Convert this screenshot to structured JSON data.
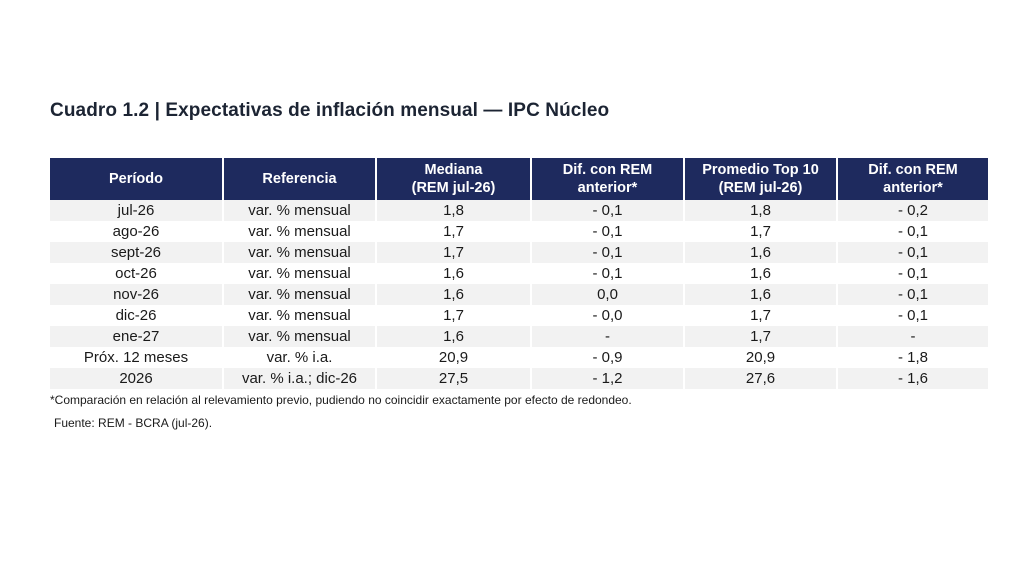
{
  "title": "Cuadro 1.2 | Expectativas de inflación mensual — IPC Núcleo",
  "table": {
    "headers": [
      [
        "Período"
      ],
      [
        "Referencia"
      ],
      [
        "Mediana",
        "(REM jul-26)"
      ],
      [
        "Dif. con REM",
        "anterior*"
      ],
      [
        "Promedio Top 10",
        "(REM jul-26)"
      ],
      [
        "Dif. con REM",
        "anterior*"
      ]
    ],
    "rows": [
      [
        "jul-26",
        "var. % mensual",
        "1,8",
        "- 0,1",
        "1,8",
        "- 0,2"
      ],
      [
        "ago-26",
        "var. % mensual",
        "1,7",
        "- 0,1",
        "1,7",
        "- 0,1"
      ],
      [
        "sept-26",
        "var. % mensual",
        "1,7",
        "- 0,1",
        "1,6",
        "- 0,1"
      ],
      [
        "oct-26",
        "var. % mensual",
        "1,6",
        "- 0,1",
        "1,6",
        "- 0,1"
      ],
      [
        "nov-26",
        "var. % mensual",
        "1,6",
        "0,0",
        "1,6",
        "- 0,1"
      ],
      [
        "dic-26",
        "var. % mensual",
        "1,7",
        "- 0,0",
        "1,7",
        "- 0,1"
      ],
      [
        "ene-27",
        "var. % mensual",
        "1,6",
        "-",
        "1,7",
        "-"
      ],
      [
        "Próx. 12 meses",
        "var. % i.a.",
        "20,9",
        "- 0,9",
        "20,9",
        "- 1,8"
      ],
      [
        "2026",
        "var. % i.a.; dic-26",
        "27,5",
        "- 1,2",
        "27,6",
        "- 1,6"
      ]
    ]
  },
  "footnote": "*Comparación en relación al relevamiento previo, pudiendo no coincidir exactamente por efecto de redondeo.",
  "source": "Fuente: REM - BCRA (jul-26).",
  "colors": {
    "header_bg": "#1e2a5e",
    "stripe": "#f2f2f2"
  }
}
